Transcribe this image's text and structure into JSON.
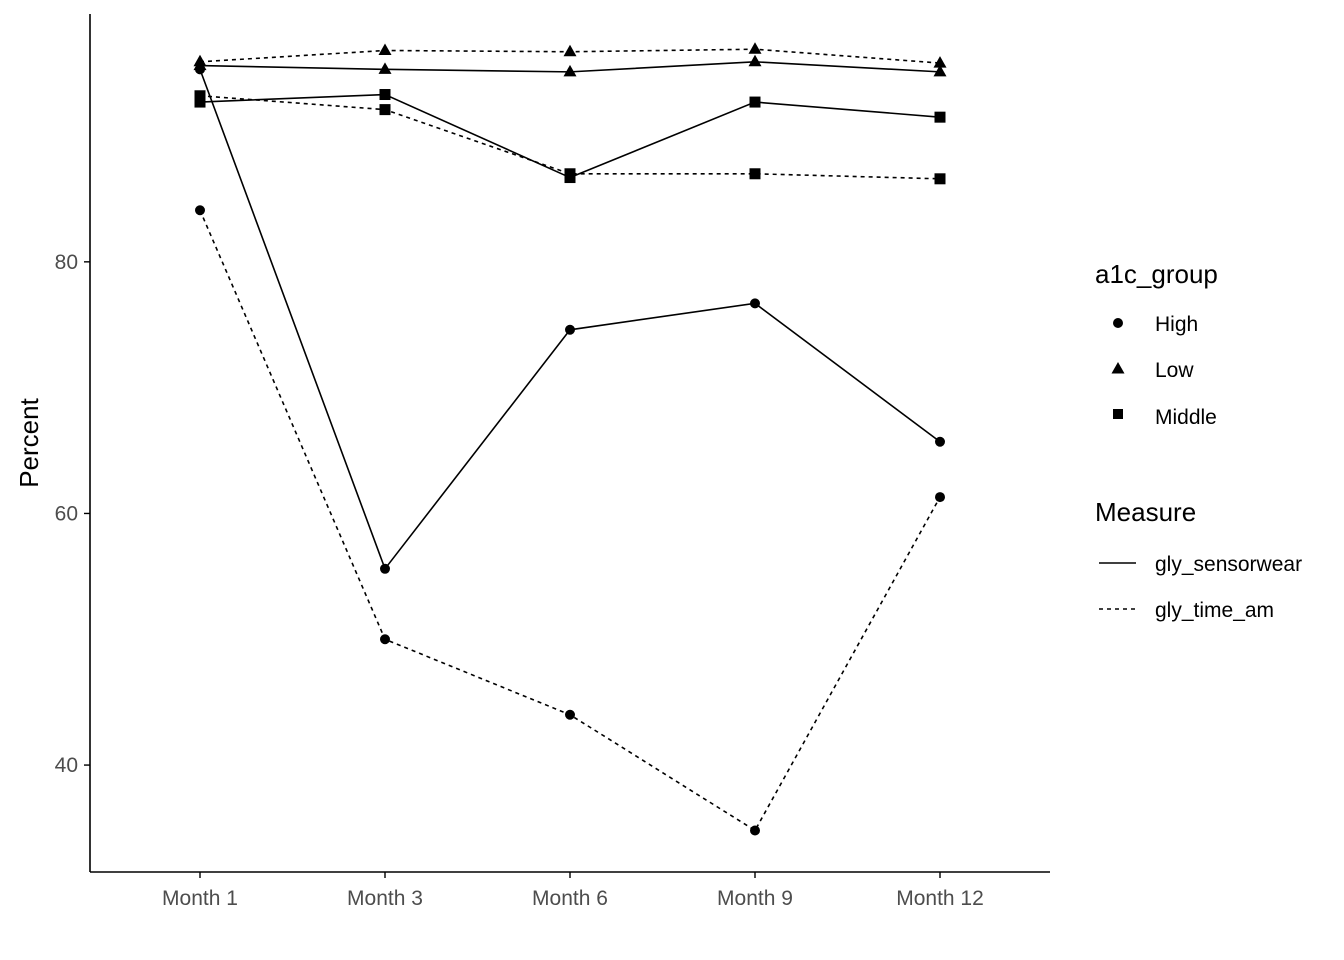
{
  "chart_data": {
    "type": "line",
    "ylabel": "Percent",
    "xlabel": "",
    "categories": [
      "Month 1",
      "Month 3",
      "Month 6",
      "Month 9",
      "Month 12"
    ],
    "ylim": [
      31.5,
      99.7
    ],
    "yticks": [
      40,
      60,
      80
    ],
    "grid": false,
    "colors": {
      "ink": "#000000",
      "tick_text": "#4d4d4d"
    },
    "series": [
      {
        "group": "High",
        "measure": "gly_sensorwear",
        "values": [
          95.3,
          55.6,
          74.6,
          76.7,
          65.7
        ]
      },
      {
        "group": "High",
        "measure": "gly_time_am",
        "values": [
          84.1,
          50.0,
          44.0,
          34.8,
          61.3
        ]
      },
      {
        "group": "Low",
        "measure": "gly_sensorwear",
        "values": [
          95.6,
          95.3,
          95.1,
          95.9,
          95.1
        ]
      },
      {
        "group": "Low",
        "measure": "gly_time_am",
        "values": [
          95.9,
          96.8,
          96.7,
          96.9,
          95.8
        ]
      },
      {
        "group": "Middle",
        "measure": "gly_sensorwear",
        "values": [
          92.7,
          93.3,
          86.7,
          92.7,
          91.5
        ]
      },
      {
        "group": "Middle",
        "measure": "gly_time_am",
        "values": [
          93.2,
          92.1,
          87.0,
          87.0,
          86.6
        ]
      }
    ],
    "legend": {
      "placement": "right",
      "shape_title": "a1c_group",
      "shape_entries": [
        {
          "label": "High",
          "shape": "circle"
        },
        {
          "label": "Low",
          "shape": "triangle"
        },
        {
          "label": "Middle",
          "shape": "square"
        }
      ],
      "linetype_title": "Measure",
      "linetype_entries": [
        {
          "label": "gly_sensorwear",
          "linetype": "solid"
        },
        {
          "label": "gly_time_am",
          "linetype": "dashed"
        }
      ]
    }
  }
}
